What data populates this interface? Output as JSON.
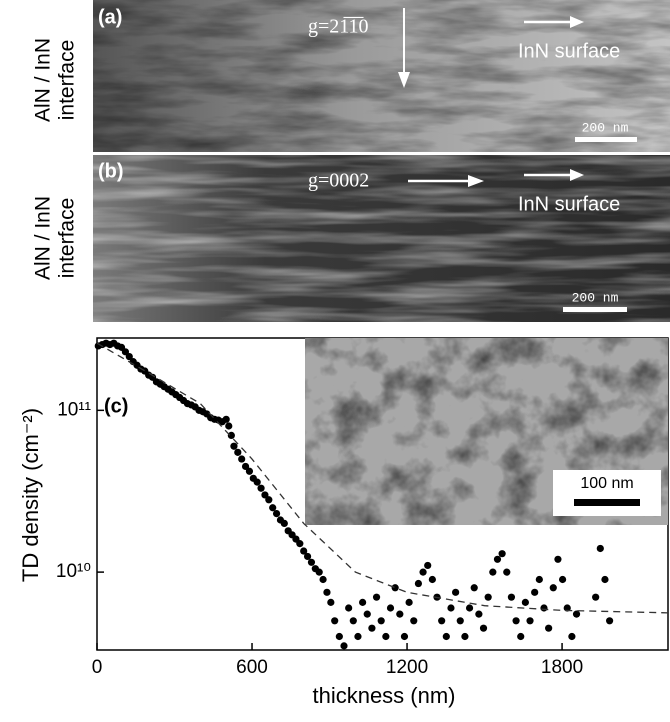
{
  "panels": {
    "a": {
      "label": "(a)",
      "side_label": [
        "AlN / InN",
        "interface"
      ],
      "g_vector": "g=21̅1̅0",
      "direction": "InN surface",
      "scale_bar": "200 nm"
    },
    "b": {
      "label": "(b)",
      "side_label": [
        "AlN / InN",
        "interface"
      ],
      "g_vector": "g=0002",
      "direction": "InN surface",
      "scale_bar": "200 nm"
    }
  },
  "chart_data": {
    "type": "scatter",
    "panel_label": "(c)",
    "inset_scale_bar": "100 nm",
    "x_label": "thickness (nm)",
    "y_label": "TD density (cm⁻²)",
    "log_y": true,
    "xlim": [
      0,
      2210
    ],
    "xticks": [
      0,
      600,
      1200,
      1800
    ],
    "ylim": [
      3300000000.0,
      280000000000.0
    ],
    "yticks": [
      {
        "value": 10000000000,
        "label": "10¹⁰"
      },
      {
        "value": 100000000000,
        "label": "10¹¹"
      }
    ],
    "series": [
      {
        "color": "#000000",
        "style": "dots",
        "x": [
          5,
          20,
          35,
          50,
          65,
          80,
          95,
          110,
          125,
          140,
          155,
          170,
          185,
          200,
          215,
          230,
          245,
          260,
          275,
          290,
          305,
          320,
          335,
          350,
          365,
          380,
          395,
          410,
          425,
          440,
          455,
          470,
          485,
          500,
          510,
          520,
          530,
          545,
          560,
          575,
          590,
          605,
          620,
          635,
          650,
          665,
          680,
          695,
          710,
          725,
          740,
          755,
          770,
          785,
          800,
          815,
          830,
          845,
          860,
          875,
          890,
          905,
          920,
          938,
          956,
          974,
          992,
          1010,
          1028,
          1046,
          1064,
          1082,
          1100,
          1118,
          1136,
          1154,
          1172,
          1190,
          1208,
          1226,
          1244,
          1262,
          1280,
          1298,
          1316,
          1334,
          1352,
          1370,
          1388,
          1406,
          1424,
          1442,
          1460,
          1478,
          1496,
          1514,
          1532,
          1550,
          1568,
          1586,
          1604,
          1622,
          1640,
          1658,
          1676,
          1694,
          1712,
          1730,
          1748,
          1766,
          1784,
          1802,
          1820,
          1838,
          1856,
          1930,
          1948,
          1966,
          1984
        ],
        "values": [
          250000000000.0,
          255000000000.0,
          260000000000.0,
          255000000000.0,
          260000000000.0,
          250000000000.0,
          245000000000.0,
          230000000000.0,
          215000000000.0,
          200000000000.0,
          190000000000.0,
          180000000000.0,
          175000000000.0,
          165000000000.0,
          160000000000.0,
          150000000000.0,
          145000000000.0,
          140000000000.0,
          135000000000.0,
          130000000000.0,
          125000000000.0,
          120000000000.0,
          115000000000.0,
          110000000000.0,
          108000000000.0,
          105000000000.0,
          100000000000.0,
          98000000000.0,
          95000000000.0,
          90000000000.0,
          88000000000.0,
          87000000000.0,
          85000000000.0,
          88000000000.0,
          80000000000.0,
          70000000000.0,
          60000000000.0,
          55000000000.0,
          50000000000.0,
          45000000000.0,
          42000000000.0,
          38000000000.0,
          36000000000.0,
          33000000000.0,
          30000000000.0,
          28000000000.0,
          25000000000.0,
          23000000000.0,
          21000000000.0,
          20000000000.0,
          18000000000.0,
          17000000000.0,
          16000000000.0,
          15000000000.0,
          13500000000.0,
          12500000000.0,
          11500000000.0,
          10500000000.0,
          10000000000.0,
          9000000000.0,
          7500000000.0,
          6500000000.0,
          5000000000.0,
          4000000000.0,
          3500000000.0,
          6000000000.0,
          5000000000.0,
          4000000000.0,
          6500000000.0,
          5500000000.0,
          4500000000.0,
          7000000000.0,
          5000000000.0,
          4000000000.0,
          6000000000.0,
          8000000000.0,
          5500000000.0,
          4000000000.0,
          6500000000.0,
          5000000000.0,
          8500000000.0,
          10000000000.0,
          11000000000.0,
          9000000000.0,
          7000000000.0,
          5000000000.0,
          4000000000.0,
          6000000000.0,
          7500000000.0,
          5000000000.0,
          4000000000.0,
          6000000000.0,
          8000000000.0,
          5500000000.0,
          4500000000.0,
          7000000000.0,
          10000000000.0,
          12000000000.0,
          13000000000.0,
          10000000000.0,
          7000000000.0,
          5000000000.0,
          4000000000.0,
          6500000000.0,
          5000000000.0,
          7500000000.0,
          9000000000.0,
          6000000000.0,
          4500000000.0,
          8000000000.0,
          12000000000.0,
          9000000000.0,
          6000000000.0,
          4000000000.0,
          5500000000.0,
          7000000000.0,
          14000000000.0,
          9000000000.0,
          5000000000.0
        ]
      },
      {
        "color": "#333333",
        "style": "dashed",
        "x": [
          0,
          200,
          400,
          600,
          800,
          1000,
          1200,
          1500,
          1800,
          2210
        ],
        "values": [
          260000000000.0,
          170000000000.0,
          110000000000.0,
          50000000000.0,
          20000000000.0,
          10000000000.0,
          7500000000.0,
          6200000000.0,
          5800000000.0,
          5600000000.0
        ]
      }
    ]
  }
}
